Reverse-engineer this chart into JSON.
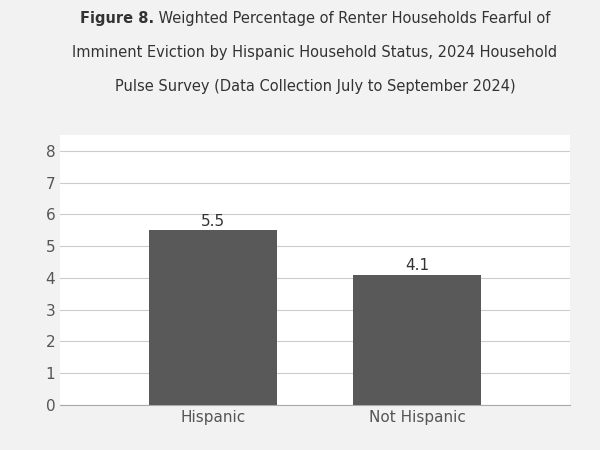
{
  "categories": [
    "Hispanic",
    "Not Hispanic"
  ],
  "values": [
    5.5,
    4.1
  ],
  "bar_color": "#595959",
  "bar_width": 0.25,
  "ylim": [
    0,
    8.5
  ],
  "yticks": [
    0,
    1,
    2,
    3,
    4,
    5,
    6,
    7,
    8
  ],
  "title_bold": "Figure 8.",
  "title_regular": " Weighted Percentage of Renter Households Fearful of\nImminent Eviction by Hispanic Household Status, 2024 Household\nPulse Survey (Data Collection July to September 2024)",
  "title_fontsize": 10.5,
  "tick_fontsize": 11,
  "value_label_fontsize": 11,
  "background_color": "#f2f2f2",
  "axes_background": "#ffffff",
  "grid_color": "#cccccc",
  "text_color": "#333333",
  "tick_color": "#555555"
}
